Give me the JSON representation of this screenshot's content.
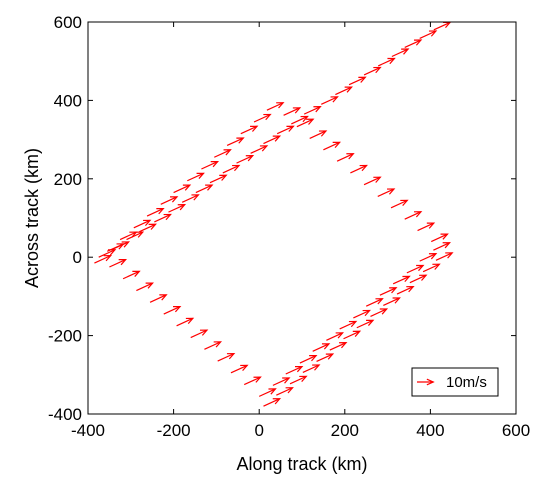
{
  "chart_data": {
    "type": "quiver",
    "xlabel": "Along track (km)",
    "ylabel": "Across track (km)",
    "xlim": [
      -400,
      600
    ],
    "ylim": [
      -400,
      600
    ],
    "xticks": [
      -400,
      -200,
      0,
      200,
      400,
      600
    ],
    "yticks": [
      -400,
      -200,
      0,
      200,
      400,
      600
    ],
    "xtick_labels": [
      "-400",
      "-200",
      "0",
      "200",
      "400",
      "600"
    ],
    "ytick_labels": [
      "-400",
      "-200",
      "0",
      "200",
      "400",
      "600"
    ],
    "legend": {
      "label": "10m/s",
      "position": "bottom-right"
    },
    "colors": {
      "arrow": "#ff0000",
      "axis": "#000000"
    },
    "grid": false,
    "arrow_components": {
      "u": 10,
      "v": 5
    },
    "vectors": [
      {
        "x": -375,
        "y": 0
      },
      {
        "x": -343,
        "y": 20
      },
      {
        "x": -310,
        "y": 45
      },
      {
        "x": -280,
        "y": 65
      },
      {
        "x": -245,
        "y": 90
      },
      {
        "x": -212,
        "y": 115
      },
      {
        "x": -180,
        "y": 140
      },
      {
        "x": -148,
        "y": 165
      },
      {
        "x": -115,
        "y": 190
      },
      {
        "x": -85,
        "y": 215
      },
      {
        "x": -53,
        "y": 240
      },
      {
        "x": -20,
        "y": 265
      },
      {
        "x": 10,
        "y": 290
      },
      {
        "x": 42,
        "y": 315
      },
      {
        "x": 75,
        "y": 340
      },
      {
        "x": 105,
        "y": 365
      },
      {
        "x": 145,
        "y": 390
      },
      {
        "x": 178,
        "y": 415
      },
      {
        "x": 210,
        "y": 440
      },
      {
        "x": 245,
        "y": 465
      },
      {
        "x": 278,
        "y": 488
      },
      {
        "x": 310,
        "y": 512
      },
      {
        "x": 340,
        "y": 535
      },
      {
        "x": 375,
        "y": 558
      },
      {
        "x": 408,
        "y": 580
      },
      {
        "x": -385,
        "y": -15
      },
      {
        "x": -355,
        "y": 15
      },
      {
        "x": -325,
        "y": 45
      },
      {
        "x": -293,
        "y": 75
      },
      {
        "x": -262,
        "y": 105
      },
      {
        "x": -230,
        "y": 135
      },
      {
        "x": -200,
        "y": 165
      },
      {
        "x": -168,
        "y": 195
      },
      {
        "x": -135,
        "y": 225
      },
      {
        "x": -105,
        "y": 255
      },
      {
        "x": -75,
        "y": 285
      },
      {
        "x": -43,
        "y": 315
      },
      {
        "x": -12,
        "y": 345
      },
      {
        "x": 18,
        "y": 375
      },
      {
        "x": -350,
        "y": -25
      },
      {
        "x": -318,
        "y": -55
      },
      {
        "x": -287,
        "y": -85
      },
      {
        "x": -255,
        "y": -115
      },
      {
        "x": -223,
        "y": -145
      },
      {
        "x": -193,
        "y": -175
      },
      {
        "x": -160,
        "y": -205
      },
      {
        "x": -128,
        "y": -235
      },
      {
        "x": -97,
        "y": -265
      },
      {
        "x": -66,
        "y": -295
      },
      {
        "x": -35,
        "y": -325
      },
      {
        "x": 57,
        "y": 362
      },
      {
        "x": 88,
        "y": 333
      },
      {
        "x": 118,
        "y": 303
      },
      {
        "x": 150,
        "y": 274
      },
      {
        "x": 182,
        "y": 245
      },
      {
        "x": 213,
        "y": 215
      },
      {
        "x": 245,
        "y": 185
      },
      {
        "x": 277,
        "y": 155
      },
      {
        "x": 308,
        "y": 126
      },
      {
        "x": 340,
        "y": 97
      },
      {
        "x": 370,
        "y": 68
      },
      {
        "x": 402,
        "y": 40
      },
      {
        "x": 0,
        "y": -355
      },
      {
        "x": 32,
        "y": -327
      },
      {
        "x": 62,
        "y": -298
      },
      {
        "x": 95,
        "y": -270
      },
      {
        "x": 125,
        "y": -240
      },
      {
        "x": 157,
        "y": -212
      },
      {
        "x": 188,
        "y": -183
      },
      {
        "x": 220,
        "y": -155
      },
      {
        "x": 250,
        "y": -125
      },
      {
        "x": 282,
        "y": -97
      },
      {
        "x": 313,
        "y": -68
      },
      {
        "x": 345,
        "y": -40
      },
      {
        "x": 375,
        "y": -10
      },
      {
        "x": 407,
        "y": 18
      },
      {
        "x": 10,
        "y": -380
      },
      {
        "x": 40,
        "y": -352
      },
      {
        "x": 72,
        "y": -323
      },
      {
        "x": 102,
        "y": -294
      },
      {
        "x": 134,
        "y": -266
      },
      {
        "x": 165,
        "y": -237
      },
      {
        "x": 197,
        "y": -208
      },
      {
        "x": 228,
        "y": -180
      },
      {
        "x": 260,
        "y": -151
      },
      {
        "x": 290,
        "y": -123
      },
      {
        "x": 322,
        "y": -94
      },
      {
        "x": 352,
        "y": -65
      },
      {
        "x": 383,
        "y": -37
      },
      {
        "x": 413,
        "y": -8
      }
    ]
  }
}
